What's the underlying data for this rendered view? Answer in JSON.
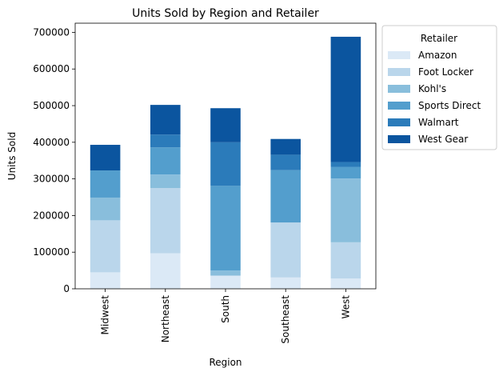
{
  "chart_data": {
    "type": "bar",
    "stacked": true,
    "title": "Units Sold by Region and Retailer",
    "xlabel": "Region",
    "ylabel": "Units Sold",
    "categories": [
      "Midwest",
      "Northeast",
      "South",
      "Southeast",
      "West"
    ],
    "ylim": [
      0,
      725000
    ],
    "yticks": [
      0,
      100000,
      200000,
      300000,
      400000,
      500000,
      600000,
      700000
    ],
    "ytick_labels": [
      "0",
      "100000",
      "200000",
      "300000",
      "400000",
      "500000",
      "600000",
      "700000"
    ],
    "grid": false,
    "legend": {
      "title": "Retailer",
      "placement": "upper-right-outside"
    },
    "series": [
      {
        "name": "Amazon",
        "color": "#dbe9f6",
        "values": [
          45000,
          97000,
          36000,
          31000,
          28000
        ]
      },
      {
        "name": "Foot Locker",
        "color": "#bad6eb",
        "values": [
          142000,
          178000,
          0,
          150000,
          99000
        ]
      },
      {
        "name": "Kohl's",
        "color": "#89bedc",
        "values": [
          62000,
          37000,
          14000,
          0,
          174000
        ]
      },
      {
        "name": "Sports Direct",
        "color": "#539ecd",
        "values": [
          74000,
          74000,
          231000,
          143000,
          32000
        ]
      },
      {
        "name": "Walmart",
        "color": "#2b7bba",
        "values": [
          0,
          35000,
          119000,
          42000,
          13000
        ]
      },
      {
        "name": "West Gear",
        "color": "#0b559f",
        "values": [
          70000,
          81000,
          93000,
          43000,
          342000
        ]
      }
    ]
  }
}
